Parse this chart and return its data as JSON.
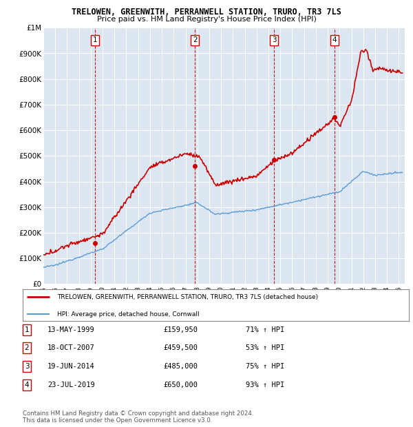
{
  "title": "TRELOWEN, GREENWITH, PERRANWELL STATION, TRURO, TR3 7LS",
  "subtitle": "Price paid vs. HM Land Registry's House Price Index (HPI)",
  "plot_bg_color": "#dce6f1",
  "ylim": [
    0,
    1000000
  ],
  "yticks": [
    0,
    100000,
    200000,
    300000,
    400000,
    500000,
    600000,
    700000,
    800000,
    900000,
    1000000
  ],
  "ytick_labels": [
    "£0",
    "£100K",
    "£200K",
    "£300K",
    "£400K",
    "£500K",
    "£600K",
    "£700K",
    "£800K",
    "£900K",
    "£1M"
  ],
  "xlim_start": 1995.0,
  "xlim_end": 2025.5,
  "transactions": [
    {
      "num": 1,
      "year": 1999.37,
      "price": 159950,
      "label": "1",
      "date": "13-MAY-1999",
      "pct": "71%"
    },
    {
      "num": 2,
      "year": 2007.79,
      "price": 459500,
      "label": "2",
      "date": "18-OCT-2007",
      "pct": "53%"
    },
    {
      "num": 3,
      "year": 2014.47,
      "price": 485000,
      "label": "3",
      "date": "19-JUN-2014",
      "pct": "75%"
    },
    {
      "num": 4,
      "year": 2019.56,
      "price": 650000,
      "label": "4",
      "date": "23-JUL-2019",
      "pct": "93%"
    }
  ],
  "legend_line1": "TRELOWEN, GREENWITH, PERRANWELL STATION, TRURO, TR3 7LS (detached house)",
  "legend_line2": "HPI: Average price, detached house, Cornwall",
  "red_color": "#cc0000",
  "blue_color": "#5b9bd5",
  "footer": "Contains HM Land Registry data © Crown copyright and database right 2024.\nThis data is licensed under the Open Government Licence v3.0."
}
